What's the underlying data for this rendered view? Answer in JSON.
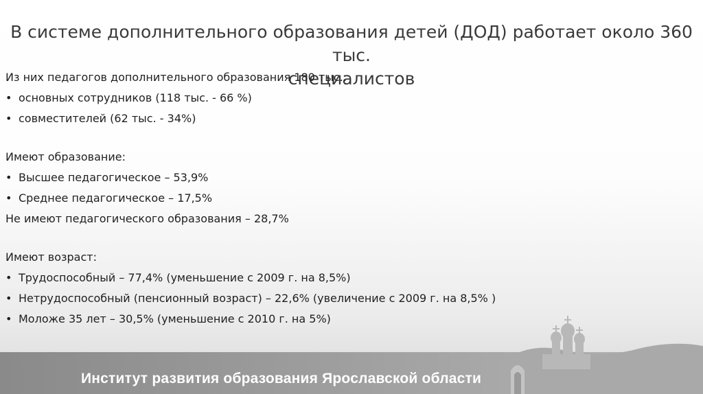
{
  "slide": {
    "title_line1": "В системе дополнительного образования детей (ДОД) работает около 360 тыс.",
    "title_line2": "специалистов",
    "intro": "Из них педагогов дополнительного образования 180 тыс.:",
    "staff": [
      "основных сотрудников (118 тыс. - 66 %)",
      "совместителей (62 тыс. - 34%)"
    ],
    "education_heading": "Имеют образование:",
    "education": [
      "Высшее педагогическое – 53,9%",
      "Среднее педагогическое – 17,5%"
    ],
    "no_education": "Не имеют педагогического образования – 28,7%",
    "age_heading": "Имеют возраст:",
    "age": [
      "Трудоспособный – 77,4% (уменьшение с 2009 г. на 8,5%)",
      "Нетрудоспособный (пенсионный возраст) – 22,6% (увеличение с 2009 г. на 8,5% )",
      "Моложе 35 лет – 30,5% (уменьшение с 2010 г. на 5%)"
    ],
    "bullet_char": "•"
  },
  "footer": {
    "institute": "Институт развития образования Ярославской области"
  }
}
